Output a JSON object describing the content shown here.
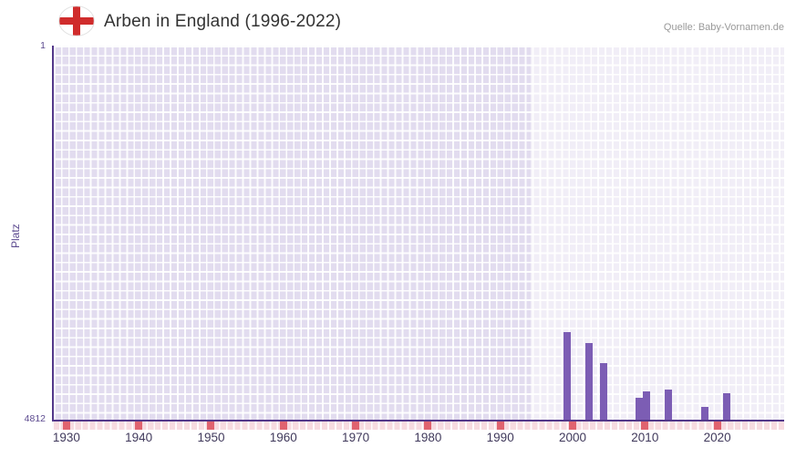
{
  "header": {
    "title": "Arben in England (1996-2022)",
    "source": "Quelle: Baby-Vornamen.de",
    "icons": {
      "flag": "england-flag-icon"
    }
  },
  "chart_data": {
    "type": "bar",
    "title": "Arben in England (1996-2022)",
    "xlabel": "",
    "ylabel": "Platz",
    "y_axis": {
      "min": 1,
      "max": 4812,
      "inverted": true,
      "top_tick": "1",
      "bottom_tick": "4812"
    },
    "x_ticks": [
      "1930",
      "1940",
      "1950",
      "1960",
      "1970",
      "1980",
      "1990",
      "2000",
      "2010",
      "2020"
    ],
    "x_range": [
      1928,
      2029
    ],
    "highlight_range": [
      1994,
      2029
    ],
    "grid": true,
    "legend": "none",
    "series": [
      {
        "name": "Platz",
        "points": [
          {
            "x": 1999,
            "y": 3680
          },
          {
            "x": 2002,
            "y": 3830
          },
          {
            "x": 2004,
            "y": 4090
          },
          {
            "x": 2009,
            "y": 4530
          },
          {
            "x": 2010,
            "y": 4450
          },
          {
            "x": 2013,
            "y": 4430
          },
          {
            "x": 2018,
            "y": 4650
          },
          {
            "x": 2021,
            "y": 4470
          }
        ]
      }
    ],
    "colors": {
      "bar": "#7c5db4",
      "plot_bg": "#e2dcef",
      "axis": "#53388a",
      "axis_label": "#5c4a8f",
      "tick_label": "#413a5c",
      "strip_bg": "#f7dbe0",
      "strip_tick": "#e0636f",
      "title": "#333333",
      "source": "#999999",
      "flag_red": "#d02c2c"
    }
  }
}
